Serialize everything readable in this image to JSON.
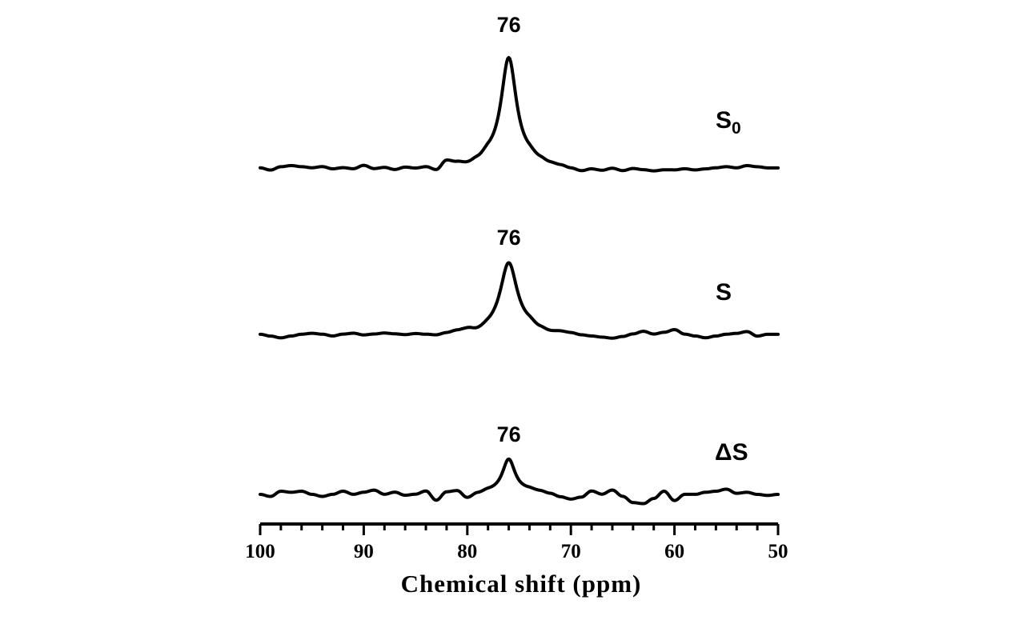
{
  "chart_data": {
    "type": "line",
    "title": "",
    "xlabel": "Chemical shift (ppm)",
    "ylabel": "",
    "xlim": [
      100,
      50
    ],
    "x_reversed": true,
    "x_major_ticks": [
      100,
      90,
      80,
      70,
      60,
      50
    ],
    "x_tick_labels": [
      "100",
      "90",
      "80",
      "70",
      "60",
      "50"
    ],
    "x_minor_step": 2,
    "grid": false,
    "legend": "none",
    "series": [
      {
        "name": "S",
        "label_main": "S",
        "label_sub": "0",
        "peak_label": "76",
        "peak_x": 76,
        "peak_height": 1.0,
        "peak_width": 0.9,
        "noise_amplitude": 0.035,
        "noise": [
          [
            100,
            0.0
          ],
          [
            99,
            -0.02
          ],
          [
            98,
            0.01
          ],
          [
            97,
            0.02
          ],
          [
            96,
            0.01
          ],
          [
            95,
            0.0
          ],
          [
            94,
            0.01
          ],
          [
            93,
            -0.01
          ],
          [
            92,
            0.0
          ],
          [
            91,
            -0.01
          ],
          [
            90,
            0.02
          ],
          [
            89,
            -0.01
          ],
          [
            88,
            0.0
          ],
          [
            87,
            -0.02
          ],
          [
            86,
            0.0
          ],
          [
            85,
            -0.01
          ],
          [
            84,
            0.0
          ],
          [
            83,
            -0.03
          ],
          [
            82,
            0.05
          ],
          [
            81,
            0.03
          ],
          [
            80,
            0.01
          ],
          [
            79,
            0.03
          ],
          [
            78,
            0.06
          ],
          [
            74,
            0.05
          ],
          [
            73,
            0.03
          ],
          [
            72,
            0.01
          ],
          [
            71,
            0.0
          ],
          [
            70,
            -0.02
          ],
          [
            69,
            -0.04
          ],
          [
            68,
            -0.02
          ],
          [
            67,
            -0.03
          ],
          [
            66,
            -0.01
          ],
          [
            65,
            -0.03
          ],
          [
            64,
            -0.01
          ],
          [
            63,
            -0.02
          ],
          [
            62,
            -0.03
          ],
          [
            61,
            -0.02
          ],
          [
            60,
            -0.02
          ],
          [
            59,
            -0.01
          ],
          [
            58,
            -0.02
          ],
          [
            57,
            -0.01
          ],
          [
            56,
            0.0
          ],
          [
            55,
            0.01
          ],
          [
            54,
            0.0
          ],
          [
            53,
            0.02
          ],
          [
            52,
            0.01
          ],
          [
            51,
            0.0
          ],
          [
            50,
            0.0
          ]
        ]
      },
      {
        "name": "S",
        "label_main": "S",
        "label_sub": "",
        "peak_label": "76",
        "peak_x": 76,
        "peak_height": 0.8,
        "peak_width": 1.0,
        "noise": [
          [
            100,
            0.0
          ],
          [
            99,
            -0.02
          ],
          [
            98,
            -0.04
          ],
          [
            97,
            -0.02
          ],
          [
            96,
            0.0
          ],
          [
            95,
            0.01
          ],
          [
            94,
            0.0
          ],
          [
            93,
            -0.02
          ],
          [
            92,
            0.0
          ],
          [
            91,
            0.01
          ],
          [
            90,
            -0.01
          ],
          [
            89,
            0.0
          ],
          [
            88,
            0.01
          ],
          [
            87,
            0.0
          ],
          [
            86,
            -0.01
          ],
          [
            85,
            0.0
          ],
          [
            84,
            -0.01
          ],
          [
            83,
            -0.02
          ],
          [
            82,
            0.0
          ],
          [
            81,
            0.02
          ],
          [
            80,
            0.03
          ],
          [
            79,
            0.0
          ],
          [
            78,
            0.02
          ],
          [
            74,
            0.05
          ],
          [
            73,
            0.02
          ],
          [
            72,
            0.0
          ],
          [
            71,
            0.01
          ],
          [
            70,
            0.0
          ],
          [
            69,
            -0.02
          ],
          [
            68,
            -0.03
          ],
          [
            67,
            -0.04
          ],
          [
            66,
            -0.05
          ],
          [
            65,
            -0.03
          ],
          [
            64,
            0.0
          ],
          [
            63,
            0.03
          ],
          [
            62,
            0.0
          ],
          [
            61,
            0.02
          ],
          [
            60,
            0.05
          ],
          [
            59,
            0.0
          ],
          [
            58,
            -0.02
          ],
          [
            57,
            -0.04
          ],
          [
            56,
            -0.02
          ],
          [
            55,
            0.0
          ],
          [
            54,
            0.01
          ],
          [
            53,
            0.03
          ],
          [
            52,
            -0.02
          ],
          [
            51,
            0.0
          ],
          [
            50,
            0.0
          ]
        ]
      },
      {
        "name": "ΔS",
        "label_main": "ΔS",
        "label_sub": "",
        "peak_label": "76",
        "peak_x": 76,
        "peak_height": 0.34,
        "peak_width": 0.75,
        "noise": [
          [
            100,
            0.0
          ],
          [
            99,
            -0.02
          ],
          [
            98,
            0.03
          ],
          [
            97,
            0.02
          ],
          [
            96,
            0.03
          ],
          [
            95,
            0.0
          ],
          [
            94,
            -0.02
          ],
          [
            93,
            0.0
          ],
          [
            92,
            0.03
          ],
          [
            91,
            0.0
          ],
          [
            90,
            0.02
          ],
          [
            89,
            0.04
          ],
          [
            88,
            0.0
          ],
          [
            87,
            0.02
          ],
          [
            86,
            -0.01
          ],
          [
            85,
            0.0
          ],
          [
            84,
            0.03
          ],
          [
            83,
            -0.06
          ],
          [
            82,
            0.02
          ],
          [
            81,
            0.03
          ],
          [
            80,
            -0.04
          ],
          [
            79,
            0.0
          ],
          [
            78,
            0.02
          ],
          [
            74,
            0.03
          ],
          [
            73,
            0.02
          ],
          [
            72,
            0.0
          ],
          [
            71,
            -0.03
          ],
          [
            70,
            -0.05
          ],
          [
            69,
            -0.03
          ],
          [
            68,
            0.03
          ],
          [
            67,
            0.0
          ],
          [
            66,
            0.04
          ],
          [
            65,
            -0.02
          ],
          [
            64,
            -0.08
          ],
          [
            63,
            -0.09
          ],
          [
            62,
            -0.04
          ],
          [
            61,
            0.03
          ],
          [
            60,
            -0.06
          ],
          [
            59,
            0.0
          ],
          [
            58,
            0.0
          ],
          [
            57,
            0.02
          ],
          [
            56,
            0.03
          ],
          [
            55,
            0.05
          ],
          [
            54,
            0.01
          ],
          [
            53,
            0.02
          ],
          [
            52,
            0.0
          ],
          [
            51,
            -0.01
          ],
          [
            50,
            0.0
          ]
        ]
      }
    ]
  }
}
